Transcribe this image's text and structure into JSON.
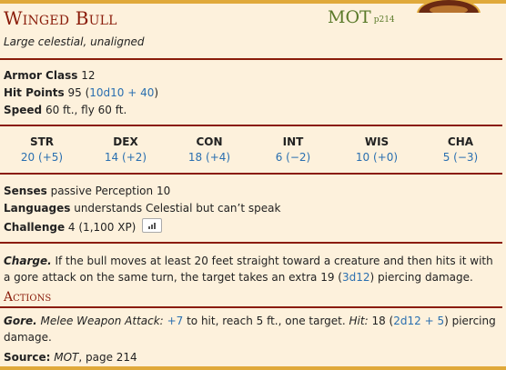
{
  "header": {
    "name": "Winged Bull",
    "source_abbr": "MOT",
    "source_page": "p214",
    "subtitle": "Large celestial, unaligned"
  },
  "stats": {
    "armor_class_label": "Armor Class",
    "armor_class_value": "12",
    "hit_points_label": "Hit Points",
    "hit_points_value": "95 (",
    "hit_points_roll": "10d10 + 40",
    "hit_points_close": ")",
    "speed_label": "Speed",
    "speed_value": "60 ft., fly 60 ft."
  },
  "abilities": [
    {
      "name": "STR",
      "value": "20 (+5)"
    },
    {
      "name": "DEX",
      "value": "14 (+2)"
    },
    {
      "name": "CON",
      "value": "18 (+4)"
    },
    {
      "name": "INT",
      "value": "6 (−2)"
    },
    {
      "name": "WIS",
      "value": "10 (+0)"
    },
    {
      "name": "CHA",
      "value": "5 (−3)"
    }
  ],
  "details": {
    "senses_label": "Senses",
    "senses_value": "passive Perception 10",
    "languages_label": "Languages",
    "languages_value": "understands Celestial but can’t speak",
    "challenge_label": "Challenge",
    "challenge_value": "4 (1,100 XP)",
    "challenge_icon": "bar-chart-icon"
  },
  "traits": {
    "charge_name": "Charge.",
    "charge_text_1": " If the bull moves at least 20 feet straight toward a creature and then hits it with",
    "charge_text_2a": "a gore attack on the same turn, the target takes an extra 19 (",
    "charge_roll": "3d12",
    "charge_text_2b": ") piercing damage."
  },
  "actions": {
    "section_title": "Actions",
    "gore_name": "Gore.",
    "gore_type": " Melee Weapon Attack:",
    "gore_to_hit": "+7",
    "gore_text_1": " to hit, reach 5 ft., one target.",
    "gore_hit_label": "Hit:",
    "gore_hit_value": " 18 (",
    "gore_hit_roll": "2d12 + 5",
    "gore_hit_close": ") piercing",
    "gore_text_2": "damage."
  },
  "footer": {
    "source_label": "Source:",
    "source_book": "MOT",
    "source_page": ", page 214"
  },
  "colors": {
    "background": "#fdf1dc",
    "title": "#8a1c0a",
    "source": "#5b7a2a",
    "rollable": "#2a6fb0",
    "frame": "#e0a93a"
  }
}
